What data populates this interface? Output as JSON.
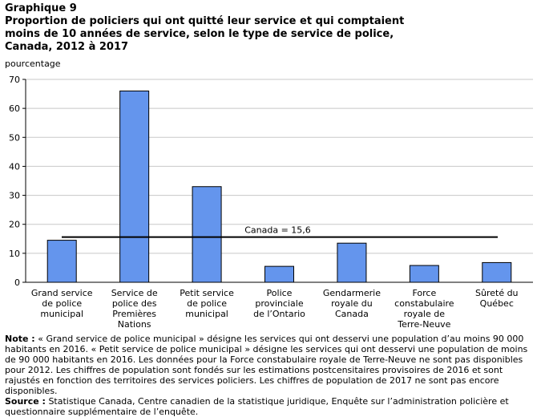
{
  "header": {
    "graph_number": "Graphique  9",
    "title_lines": [
      "Proportion  de policiers qui ont quitté leur service et qui comptaient",
      "moins de 10 années de service, selon le type de service de police,",
      "Canada, 2012 à 2017"
    ]
  },
  "chart_data": {
    "type": "bar",
    "ylabel": "pourcentage",
    "ylim": [
      0,
      70
    ],
    "yticks": [
      0,
      10,
      20,
      30,
      40,
      50,
      60,
      70
    ],
    "grid": true,
    "bar_color": "#6495ED",
    "categories": [
      [
        "Grand service",
        "de police",
        "municipal"
      ],
      [
        "Service de",
        "police des",
        "Premières",
        "Nations"
      ],
      [
        "Petit service",
        "de police",
        "municipal"
      ],
      [
        "Police",
        "provinciale",
        "de l’Ontario"
      ],
      [
        "Gendarmerie",
        "royale du",
        "Canada"
      ],
      [
        "Force",
        "constabulaire",
        "royale de",
        "Terre-Neuve"
      ],
      [
        "Sûreté du",
        "Québec"
      ]
    ],
    "values": [
      14.5,
      66.0,
      33.0,
      5.5,
      13.5,
      5.8,
      6.8
    ],
    "reference_line": {
      "label": "Canada = 15,6",
      "value": 15.6
    }
  },
  "footer": {
    "note_label": "Note :",
    "note_text": " « Grand service de police municipal » désigne les services qui ont desservi une population d’au moins 90 000 habitants en 2016. « Petit service de police municipal » désigne les services qui ont desservi une population de moins de 90 000 habitants en 2016. Les données pour la Force constabulaire royale de Terre-Neuve ne sont pas disponibles pour 2012. Les chiffres de population sont fondés sur les estimations postcensitaires provisoires de 2016 et sont rajustés en fonction des territoires des services policiers. Les chiffres de population de 2017 ne sont pas encore disponibles.",
    "source_label": "Source :",
    "source_text": " Statistique Canada, Centre canadien de la statistique juridique, Enquête sur l’administration policière et questionnaire supplémentaire de l’enquête."
  }
}
